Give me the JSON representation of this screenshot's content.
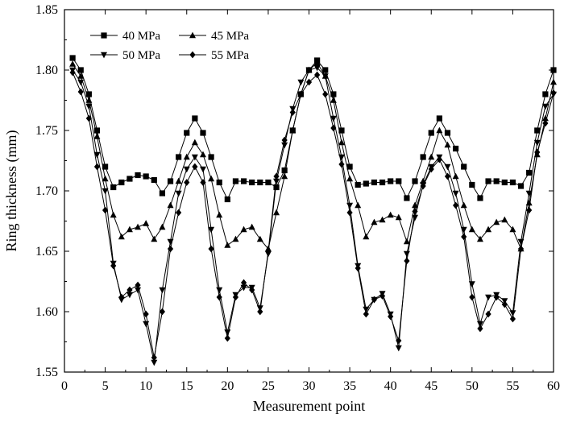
{
  "chart_data": {
    "type": "line",
    "title": "",
    "xlabel": "Measurement point",
    "ylabel": "Ring thickness (mm)",
    "xlim": [
      0,
      60
    ],
    "ylim": [
      1.55,
      1.85
    ],
    "xticks": [
      0,
      5,
      10,
      15,
      20,
      25,
      30,
      35,
      40,
      45,
      50,
      55,
      60
    ],
    "yticks": [
      1.55,
      1.6,
      1.65,
      1.7,
      1.75,
      1.8,
      1.85
    ],
    "ytick_labels": [
      "1.55",
      "1.60",
      "1.65",
      "1.70",
      "1.75",
      "1.80",
      "1.85"
    ],
    "grid": false,
    "legend_position": "top-left",
    "x": [
      1,
      2,
      3,
      4,
      5,
      6,
      7,
      8,
      9,
      10,
      11,
      12,
      13,
      14,
      15,
      16,
      17,
      18,
      19,
      20,
      21,
      22,
      23,
      24,
      25,
      26,
      27,
      28,
      29,
      30,
      31,
      32,
      33,
      34,
      35,
      36,
      37,
      38,
      39,
      40,
      41,
      42,
      43,
      44,
      45,
      46,
      47,
      48,
      49,
      50,
      51,
      52,
      53,
      54,
      55,
      56,
      57,
      58,
      59,
      60
    ],
    "series": [
      {
        "name": "40 MPa",
        "marker": "square",
        "values": [
          1.81,
          1.8,
          1.78,
          1.75,
          1.72,
          1.703,
          1.707,
          1.71,
          1.713,
          1.712,
          1.709,
          1.698,
          1.708,
          1.728,
          1.748,
          1.76,
          1.748,
          1.728,
          1.707,
          1.693,
          1.708,
          1.708,
          1.707,
          1.707,
          1.707,
          1.703,
          1.717,
          1.75,
          1.78,
          1.8,
          1.808,
          1.8,
          1.78,
          1.75,
          1.72,
          1.705,
          1.706,
          1.707,
          1.707,
          1.708,
          1.708,
          1.694,
          1.708,
          1.728,
          1.748,
          1.76,
          1.748,
          1.735,
          1.72,
          1.705,
          1.694,
          1.708,
          1.708,
          1.707,
          1.707,
          1.704,
          1.715,
          1.75,
          1.78,
          1.8
        ]
      },
      {
        "name": "45 MPa",
        "marker": "triangle-up",
        "values": [
          1.805,
          1.795,
          1.775,
          1.745,
          1.71,
          1.68,
          1.662,
          1.668,
          1.67,
          1.673,
          1.66,
          1.67,
          1.688,
          1.708,
          1.728,
          1.74,
          1.73,
          1.71,
          1.68,
          1.655,
          1.66,
          1.668,
          1.67,
          1.66,
          1.652,
          1.682,
          1.712,
          1.75,
          1.78,
          1.8,
          1.806,
          1.795,
          1.775,
          1.74,
          1.71,
          1.688,
          1.662,
          1.674,
          1.676,
          1.68,
          1.678,
          1.658,
          1.688,
          1.708,
          1.728,
          1.75,
          1.738,
          1.712,
          1.688,
          1.668,
          1.66,
          1.668,
          1.674,
          1.676,
          1.668,
          1.652,
          1.69,
          1.73,
          1.76,
          1.79
        ]
      },
      {
        "name": "50 MPa",
        "marker": "triangle-down",
        "values": [
          1.8,
          1.79,
          1.77,
          1.73,
          1.7,
          1.64,
          1.61,
          1.614,
          1.618,
          1.59,
          1.558,
          1.618,
          1.658,
          1.698,
          1.718,
          1.728,
          1.718,
          1.668,
          1.618,
          1.583,
          1.614,
          1.62,
          1.62,
          1.603,
          1.648,
          1.708,
          1.738,
          1.768,
          1.79,
          1.8,
          1.802,
          1.795,
          1.76,
          1.728,
          1.688,
          1.638,
          1.602,
          1.61,
          1.615,
          1.598,
          1.57,
          1.648,
          1.678,
          1.705,
          1.72,
          1.728,
          1.72,
          1.698,
          1.668,
          1.623,
          1.59,
          1.612,
          1.614,
          1.609,
          1.599,
          1.658,
          1.698,
          1.74,
          1.77,
          1.78
        ]
      },
      {
        "name": "55 MPa",
        "marker": "diamond",
        "values": [
          1.798,
          1.782,
          1.76,
          1.72,
          1.684,
          1.638,
          1.612,
          1.618,
          1.622,
          1.598,
          1.562,
          1.6,
          1.652,
          1.682,
          1.707,
          1.72,
          1.707,
          1.652,
          1.612,
          1.578,
          1.612,
          1.624,
          1.618,
          1.6,
          1.65,
          1.712,
          1.742,
          1.765,
          1.78,
          1.79,
          1.796,
          1.78,
          1.752,
          1.722,
          1.682,
          1.636,
          1.598,
          1.61,
          1.613,
          1.596,
          1.576,
          1.642,
          1.683,
          1.704,
          1.718,
          1.726,
          1.712,
          1.688,
          1.662,
          1.612,
          1.586,
          1.598,
          1.612,
          1.606,
          1.594,
          1.652,
          1.684,
          1.732,
          1.756,
          1.781
        ]
      }
    ]
  }
}
